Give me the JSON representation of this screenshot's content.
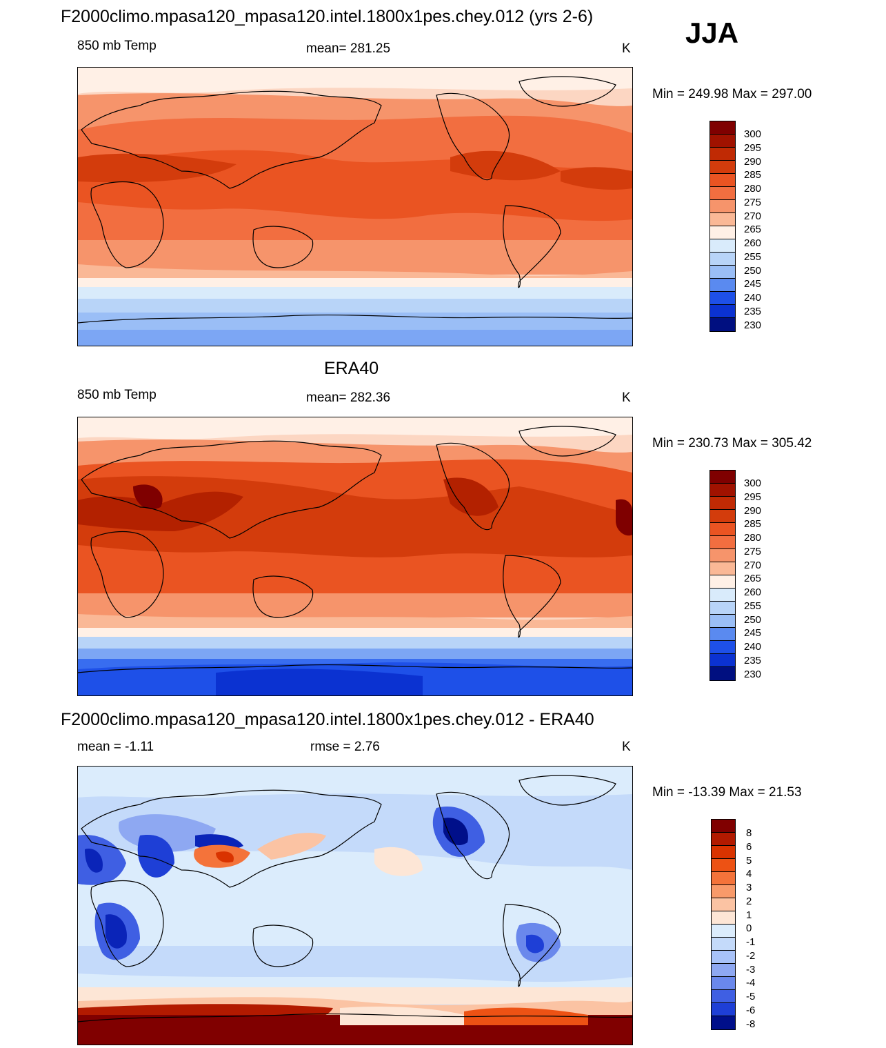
{
  "season": "JJA",
  "colors": {
    "warm": [
      "#7f0000",
      "#b32100",
      "#d33c0c",
      "#ea5422",
      "#f26e40",
      "#f6946b",
      "#fab896",
      "#fcd6c2",
      "#fff0e6"
    ],
    "cool": [
      "#d9ebfb",
      "#b8d4f8",
      "#9abef6",
      "#7ca6f4",
      "#5a8af0",
      "#386df0",
      "#1e50e8",
      "#0b32d1",
      "#0020a8",
      "#000f80"
    ],
    "diff": [
      "#800000",
      "#b21a00",
      "#d93300",
      "#ed5214",
      "#f4733a",
      "#f89a6a",
      "#fbc3a3",
      "#fde6d6",
      "#dbecfc",
      "#c4dafa",
      "#a8c2f8",
      "#8ea8f2",
      "#6a88ec",
      "#3f5fe3",
      "#1e3fd6",
      "#0a24b8",
      "#000f8a"
    ],
    "land_outline": "#000000"
  },
  "panels": [
    {
      "title": "F2000climo.mpasa120_mpasa120.intel.1800x1pes.chey.012 (yrs 2-6)",
      "left_label": "850 mb Temp",
      "center_label": "mean= 281.25",
      "units": "K",
      "minmax": "Min = 249.98 Max = 297.00",
      "colorbar_labels": [
        "300",
        "295",
        "290",
        "285",
        "280",
        "275",
        "270",
        "265",
        "260",
        "255",
        "250",
        "245",
        "240",
        "235",
        "230"
      ]
    },
    {
      "title": "ERA40",
      "left_label": "850 mb Temp",
      "center_label": "mean= 282.36",
      "units": "K",
      "minmax": "Min = 230.73 Max = 305.42",
      "colorbar_labels": [
        "300",
        "295",
        "290",
        "285",
        "280",
        "275",
        "270",
        "265",
        "260",
        "255",
        "250",
        "245",
        "240",
        "235",
        "230"
      ]
    },
    {
      "title": "F2000climo.mpasa120_mpasa120.intel.1800x1pes.chey.012 - ERA40",
      "left_label": "mean =  -1.11",
      "center_label": "rmse =   2.76",
      "units": "K",
      "minmax": "Min = -13.39 Max =  21.53",
      "colorbar_labels": [
        "8",
        "6",
        "5",
        "4",
        "3",
        "2",
        "1",
        "0",
        "-1",
        "-2",
        "-3",
        "-4",
        "-5",
        "-6",
        "-8"
      ]
    }
  ]
}
